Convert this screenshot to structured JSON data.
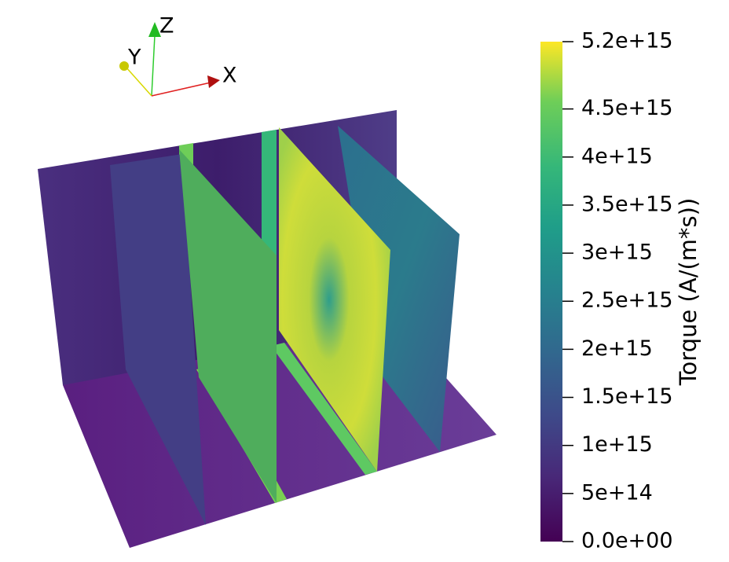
{
  "orientation_axes": {
    "labels": [
      "X",
      "Y",
      "Z"
    ]
  },
  "colorbar": {
    "title": "Torque (A/(m*s))",
    "range": [
      0,
      5200000000000000.0
    ],
    "ticks": [
      {
        "value": 5200000000000000.0,
        "label": "5.2e+15"
      },
      {
        "value": 4500000000000000.0,
        "label": "4.5e+15"
      },
      {
        "value": 4000000000000000.0,
        "label": "4e+15"
      },
      {
        "value": 3500000000000000.0,
        "label": "3.5e+15"
      },
      {
        "value": 3000000000000000.0,
        "label": "3e+15"
      },
      {
        "value": 2500000000000000.0,
        "label": "2.5e+15"
      },
      {
        "value": 2000000000000000.0,
        "label": "2e+15"
      },
      {
        "value": 1500000000000000.0,
        "label": "1.5e+15"
      },
      {
        "value": 1000000000000000.0,
        "label": "1e+15"
      },
      {
        "value": 500000000000000.0,
        "label": "5e+14"
      },
      {
        "value": 0,
        "label": "0.0e+00"
      }
    ]
  }
}
